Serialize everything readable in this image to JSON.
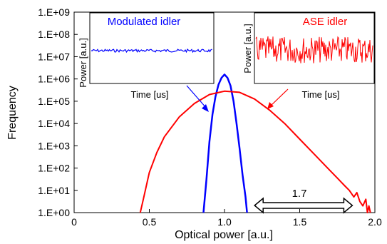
{
  "chart_data": {
    "type": "line",
    "title": "",
    "xlabel": "Optical power [a.u.]",
    "ylabel": "Frequency",
    "xlim": [
      0,
      2.0
    ],
    "ylim_log10": [
      0,
      9
    ],
    "yscale": "log",
    "x_ticks": [
      0,
      0.5,
      1.0,
      1.5,
      2.0
    ],
    "x_tick_labels": [
      "0",
      "0.5",
      "1.0",
      "1.5",
      "2.0"
    ],
    "y_ticks_log10": [
      0,
      1,
      2,
      3,
      4,
      5,
      6,
      7,
      8,
      9
    ],
    "y_tick_labels": [
      "1.E+00",
      "1.E+01",
      "1.E+02",
      "1.E+03",
      "1.E+04",
      "1.E+05",
      "1.E+06",
      "1.E+07",
      "1.E+08",
      "1.E+09"
    ],
    "grid": false,
    "series": [
      {
        "key": "modulated",
        "color": "#0000ff",
        "points": [
          [
            0.86,
            0
          ],
          [
            0.88,
            1.5
          ],
          [
            0.9,
            3.2
          ],
          [
            0.92,
            4.4
          ],
          [
            0.94,
            5.2
          ],
          [
            0.96,
            5.75
          ],
          [
            0.98,
            6.05
          ],
          [
            1.0,
            6.2
          ],
          [
            1.02,
            6.05
          ],
          [
            1.04,
            5.7
          ],
          [
            1.06,
            5.0
          ],
          [
            1.08,
            4.0
          ],
          [
            1.1,
            2.9
          ],
          [
            1.12,
            1.7
          ],
          [
            1.14,
            0.7
          ],
          [
            1.15,
            0
          ]
        ]
      },
      {
        "key": "ase",
        "color": "#ff0000",
        "points": [
          [
            0.44,
            0
          ],
          [
            0.46,
            0.6
          ],
          [
            0.5,
            1.8
          ],
          [
            0.55,
            2.7
          ],
          [
            0.6,
            3.4
          ],
          [
            0.7,
            4.3
          ],
          [
            0.8,
            4.9
          ],
          [
            0.9,
            5.3
          ],
          [
            1.0,
            5.45
          ],
          [
            1.1,
            5.4
          ],
          [
            1.2,
            5.1
          ],
          [
            1.3,
            4.6
          ],
          [
            1.4,
            4.0
          ],
          [
            1.5,
            3.3
          ],
          [
            1.6,
            2.6
          ],
          [
            1.7,
            1.9
          ],
          [
            1.75,
            1.55
          ],
          [
            1.8,
            1.2
          ],
          [
            1.83,
            1.0
          ],
          [
            1.86,
            0.7
          ],
          [
            1.88,
            0.9
          ],
          [
            1.9,
            0.5
          ],
          [
            1.92,
            0.3
          ],
          [
            1.94,
            0.6
          ],
          [
            1.95,
            0
          ],
          [
            1.96,
            0.3
          ],
          [
            1.97,
            0
          ]
        ]
      }
    ],
    "insets": [
      {
        "key": "modulated_inset",
        "title": "Modulated idler",
        "xlabel": "Time [us]",
        "ylabel": "Power [a.u.]",
        "color": "#0000ff"
      },
      {
        "key": "ase_inset",
        "title": "ASE idler",
        "xlabel": "Time [us]",
        "ylabel": "Power [a.u.]",
        "color": "#ff0000"
      }
    ],
    "annotations": {
      "span_label": "1.7",
      "span_from_x": 1.2,
      "span_to_x": 1.85
    }
  }
}
